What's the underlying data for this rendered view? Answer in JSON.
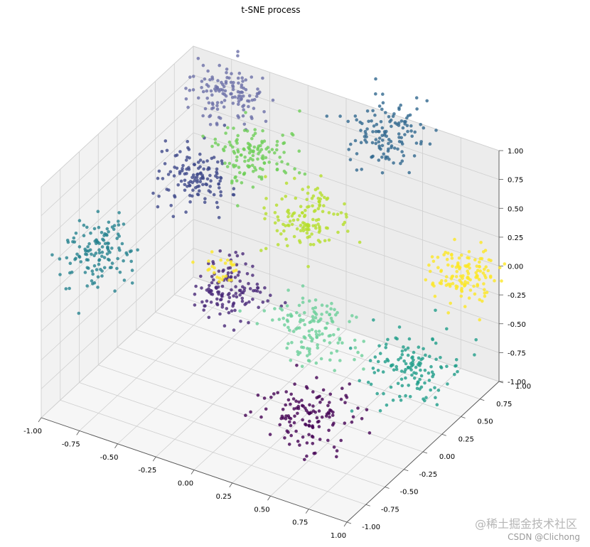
{
  "chart_data": {
    "type": "scatter",
    "projection": "3d",
    "title": "t-SNE process",
    "xlim": [
      -1.0,
      1.0
    ],
    "ylim": [
      -1.0,
      1.0
    ],
    "zlim": [
      -1.0,
      1.0
    ],
    "xticks": [
      "-1.00",
      "-0.75",
      "-0.50",
      "-0.25",
      "0.00",
      "0.25",
      "0.50",
      "0.75",
      "1.00"
    ],
    "yticks": [
      "-1.00",
      "-0.75",
      "-0.50",
      "-0.25",
      "0.00",
      "0.25",
      "0.50",
      "0.75",
      "1.00"
    ],
    "zticks": [
      "-1.00",
      "-0.75",
      "-0.50",
      "-0.25",
      "0.00",
      "0.25",
      "0.50",
      "0.75",
      "1.00"
    ],
    "grid": true,
    "legend": false,
    "colormap": "viridis",
    "clusters": [
      {
        "label": 0,
        "color": "#440154",
        "center": [
          0.3,
          -0.1,
          -0.95
        ],
        "spread": 0.13
      },
      {
        "label": 1,
        "color": "#482878",
        "center": [
          -0.3,
          0.1,
          -0.25
        ],
        "spread": 0.1
      },
      {
        "label": 2,
        "color": "#3e4989",
        "center": [
          -0.8,
          0.6,
          0.2
        ],
        "spread": 0.11
      },
      {
        "label": 3,
        "color": "#6b6fa8",
        "center": [
          -0.75,
          0.95,
          0.75
        ],
        "spread": 0.11
      },
      {
        "label": 4,
        "color": "#31688e",
        "center": [
          0.3,
          0.95,
          0.85
        ],
        "spread": 0.13
      },
      {
        "label": 5,
        "color": "#26828e",
        "center": [
          -0.95,
          -0.35,
          0.05
        ],
        "spread": 0.12
      },
      {
        "label": 6,
        "color": "#1f9e89",
        "center": [
          0.85,
          0.15,
          -0.45
        ],
        "spread": 0.13
      },
      {
        "label": 7,
        "color": "#6ccf9a",
        "center": [
          0.2,
          0.2,
          -0.45
        ],
        "spread": 0.13
      },
      {
        "label": 8,
        "color": "#6ece58",
        "center": [
          -0.5,
          0.8,
          0.4
        ],
        "spread": 0.12
      },
      {
        "label": 9,
        "color": "#b5de2b",
        "center": [
          -0.05,
          0.6,
          0.2
        ],
        "spread": 0.11
      },
      {
        "label": 10,
        "color": "#fde725",
        "center": [
          0.95,
          0.65,
          0.1
        ],
        "spread": 0.1
      },
      {
        "label": 11,
        "color": "#fde725",
        "center": [
          -0.35,
          0.05,
          -0.05
        ],
        "spread": 0.06
      }
    ]
  },
  "watermark": {
    "line1": "@稀土掘金技术社区",
    "line2": "CSDN @Clichong"
  }
}
